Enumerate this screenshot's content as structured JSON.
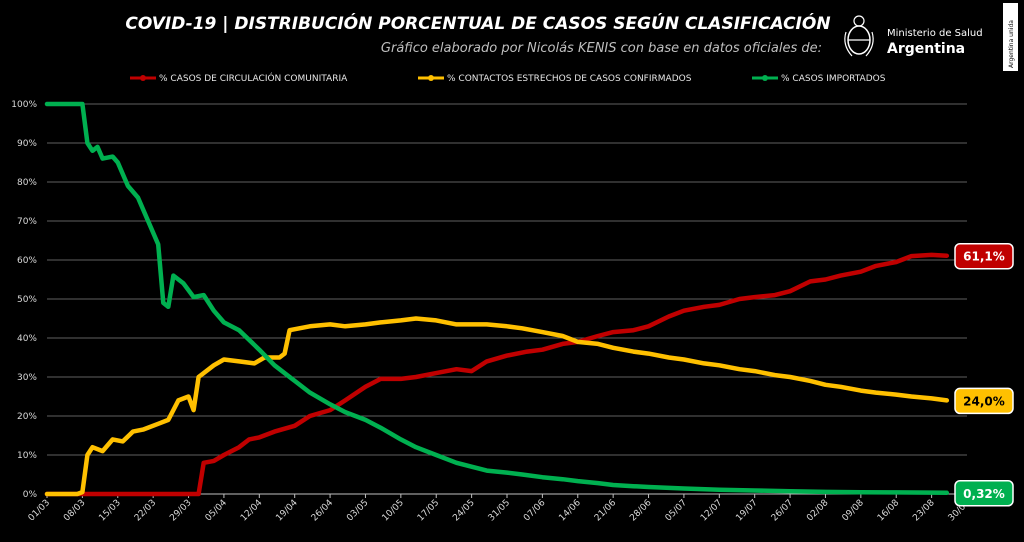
{
  "header": {
    "title": "COVID-19  |  DISTRIBUCIÓN PORCENTUAL DE CASOS SEGÚN CLASIFICACIÓN",
    "subtitle": "Gráfico elaborado por Nicolás KENIS con base en datos oficiales de:"
  },
  "logo": {
    "line1": "Ministerio de Salud",
    "line2": "Argentina",
    "icon": "argentina-coat-of-arms-icon",
    "side_text": "Argentina unida"
  },
  "colors": {
    "comunitaria": "#c00000",
    "contactos": "#ffc000",
    "importados": "#00b050",
    "grid": "#7f7f7f"
  },
  "chart_data": {
    "type": "line",
    "title": "COVID-19  |  DISTRIBUCIÓN PORCENTUAL DE CASOS SEGÚN CLASIFICACIÓN",
    "ylim": [
      0,
      100
    ],
    "yticks": [
      "0%",
      "10%",
      "20%",
      "30%",
      "40%",
      "50%",
      "60%",
      "70%",
      "80%",
      "90%",
      "100%"
    ],
    "xticks": [
      "01/03",
      "08/03",
      "15/03",
      "22/03",
      "29/03",
      "05/04",
      "12/04",
      "19/04",
      "26/04",
      "03/05",
      "10/05",
      "17/05",
      "24/05",
      "31/05",
      "07/06",
      "14/06",
      "21/06",
      "28/06",
      "05/07",
      "12/07",
      "19/07",
      "26/07",
      "02/08",
      "09/08",
      "16/08",
      "23/08",
      "30/08"
    ],
    "grid": true,
    "legend": "top",
    "series": [
      {
        "name": "% CASOS DE CIRCULACIÓN COMUNITARIA",
        "color": "#c00000",
        "end_label": "61,1%",
        "points": [
          [
            "01/03",
            0
          ],
          [
            "31/03",
            0
          ],
          [
            "01/04",
            8
          ],
          [
            "03/04",
            8.5
          ],
          [
            "05/04",
            10
          ],
          [
            "08/04",
            12
          ],
          [
            "10/04",
            14
          ],
          [
            "12/04",
            14.5
          ],
          [
            "15/04",
            16
          ],
          [
            "19/04",
            17.5
          ],
          [
            "22/04",
            20
          ],
          [
            "26/04",
            21.5
          ],
          [
            "29/04",
            24
          ],
          [
            "03/05",
            27.5
          ],
          [
            "06/05",
            29.5
          ],
          [
            "10/05",
            29.5
          ],
          [
            "13/05",
            30
          ],
          [
            "17/05",
            31
          ],
          [
            "21/05",
            32
          ],
          [
            "24/05",
            31.5
          ],
          [
            "27/05",
            34
          ],
          [
            "31/05",
            35.5
          ],
          [
            "04/06",
            36.5
          ],
          [
            "07/06",
            37
          ],
          [
            "11/06",
            38.5
          ],
          [
            "14/06",
            39
          ],
          [
            "18/06",
            40.5
          ],
          [
            "21/06",
            41.5
          ],
          [
            "25/06",
            42
          ],
          [
            "28/06",
            43
          ],
          [
            "02/07",
            45.5
          ],
          [
            "05/07",
            47
          ],
          [
            "09/07",
            48
          ],
          [
            "12/07",
            48.5
          ],
          [
            "16/07",
            50
          ],
          [
            "19/07",
            50.5
          ],
          [
            "23/07",
            51
          ],
          [
            "26/07",
            52
          ],
          [
            "30/07",
            54.5
          ],
          [
            "02/08",
            55
          ],
          [
            "05/08",
            56
          ],
          [
            "09/08",
            57
          ],
          [
            "12/08",
            58.5
          ],
          [
            "16/08",
            59.5
          ],
          [
            "19/08",
            61
          ],
          [
            "23/08",
            61.3
          ],
          [
            "26/08",
            61.1
          ]
        ]
      },
      {
        "name": "% CONTACTOS ESTRECHOS DE CASOS CONFIRMADOS",
        "color": "#ffc000",
        "end_label": "24,0%",
        "points": [
          [
            "01/03",
            0
          ],
          [
            "07/03",
            0
          ],
          [
            "08/03",
            0.5
          ],
          [
            "09/03",
            10
          ],
          [
            "10/03",
            12
          ],
          [
            "12/03",
            11
          ],
          [
            "14/03",
            14
          ],
          [
            "16/03",
            13.5
          ],
          [
            "18/03",
            16
          ],
          [
            "20/03",
            16.5
          ],
          [
            "23/03",
            18
          ],
          [
            "25/03",
            19
          ],
          [
            "27/03",
            24
          ],
          [
            "29/03",
            25
          ],
          [
            "30/03",
            21.5
          ],
          [
            "31/03",
            30
          ],
          [
            "03/04",
            33
          ],
          [
            "05/04",
            34.5
          ],
          [
            "08/04",
            34
          ],
          [
            "11/04",
            33.5
          ],
          [
            "13/04",
            35
          ],
          [
            "16/04",
            35
          ],
          [
            "17/04",
            36
          ],
          [
            "18/04",
            42
          ],
          [
            "22/04",
            43
          ],
          [
            "26/04",
            43.5
          ],
          [
            "29/04",
            43
          ],
          [
            "03/05",
            43.5
          ],
          [
            "06/05",
            44
          ],
          [
            "10/05",
            44.5
          ],
          [
            "13/05",
            45
          ],
          [
            "17/05",
            44.5
          ],
          [
            "21/05",
            43.5
          ],
          [
            "24/05",
            43.5
          ],
          [
            "27/05",
            43.5
          ],
          [
            "31/05",
            43
          ],
          [
            "03/06",
            42.5
          ],
          [
            "07/06",
            41.5
          ],
          [
            "11/06",
            40.5
          ],
          [
            "14/06",
            39
          ],
          [
            "18/06",
            38.5
          ],
          [
            "21/06",
            37.5
          ],
          [
            "25/06",
            36.5
          ],
          [
            "28/06",
            36
          ],
          [
            "02/07",
            35
          ],
          [
            "05/07",
            34.5
          ],
          [
            "09/07",
            33.5
          ],
          [
            "12/07",
            33
          ],
          [
            "16/07",
            32
          ],
          [
            "19/07",
            31.5
          ],
          [
            "23/07",
            30.5
          ],
          [
            "26/07",
            30
          ],
          [
            "30/07",
            29
          ],
          [
            "02/08",
            28
          ],
          [
            "05/08",
            27.5
          ],
          [
            "09/08",
            26.5
          ],
          [
            "12/08",
            26
          ],
          [
            "16/08",
            25.5
          ],
          [
            "19/08",
            25
          ],
          [
            "23/08",
            24.5
          ],
          [
            "26/08",
            24
          ]
        ]
      },
      {
        "name": "% CASOS IMPORTADOS",
        "color": "#00b050",
        "end_label": "0,32%",
        "points": [
          [
            "01/03",
            100
          ],
          [
            "08/03",
            100
          ],
          [
            "09/03",
            90
          ],
          [
            "10/03",
            88
          ],
          [
            "11/03",
            89
          ],
          [
            "12/03",
            86
          ],
          [
            "14/03",
            86.5
          ],
          [
            "15/03",
            85
          ],
          [
            "17/03",
            79
          ],
          [
            "19/03",
            76
          ],
          [
            "21/03",
            70
          ],
          [
            "23/03",
            64
          ],
          [
            "24/03",
            49
          ],
          [
            "25/03",
            48
          ],
          [
            "26/03",
            56
          ],
          [
            "28/03",
            54
          ],
          [
            "30/03",
            50.5
          ],
          [
            "01/04",
            51
          ],
          [
            "03/04",
            47
          ],
          [
            "05/04",
            44
          ],
          [
            "08/04",
            42
          ],
          [
            "12/04",
            37
          ],
          [
            "15/04",
            33
          ],
          [
            "19/04",
            29
          ],
          [
            "22/04",
            26
          ],
          [
            "26/04",
            23
          ],
          [
            "29/04",
            21
          ],
          [
            "03/05",
            19
          ],
          [
            "06/05",
            17
          ],
          [
            "10/05",
            14
          ],
          [
            "13/05",
            12
          ],
          [
            "17/05",
            10
          ],
          [
            "21/05",
            8
          ],
          [
            "24/05",
            7
          ],
          [
            "27/05",
            6
          ],
          [
            "31/05",
            5.5
          ],
          [
            "03/06",
            5
          ],
          [
            "07/06",
            4.3
          ],
          [
            "11/06",
            3.8
          ],
          [
            "14/06",
            3.3
          ],
          [
            "18/06",
            2.8
          ],
          [
            "21/06",
            2.3
          ],
          [
            "25/06",
            2
          ],
          [
            "28/06",
            1.8
          ],
          [
            "05/07",
            1.4
          ],
          [
            "12/07",
            1.1
          ],
          [
            "19/07",
            0.9
          ],
          [
            "26/07",
            0.7
          ],
          [
            "02/08",
            0.55
          ],
          [
            "09/08",
            0.45
          ],
          [
            "16/08",
            0.4
          ],
          [
            "23/08",
            0.35
          ],
          [
            "26/08",
            0.32
          ]
        ]
      }
    ]
  }
}
